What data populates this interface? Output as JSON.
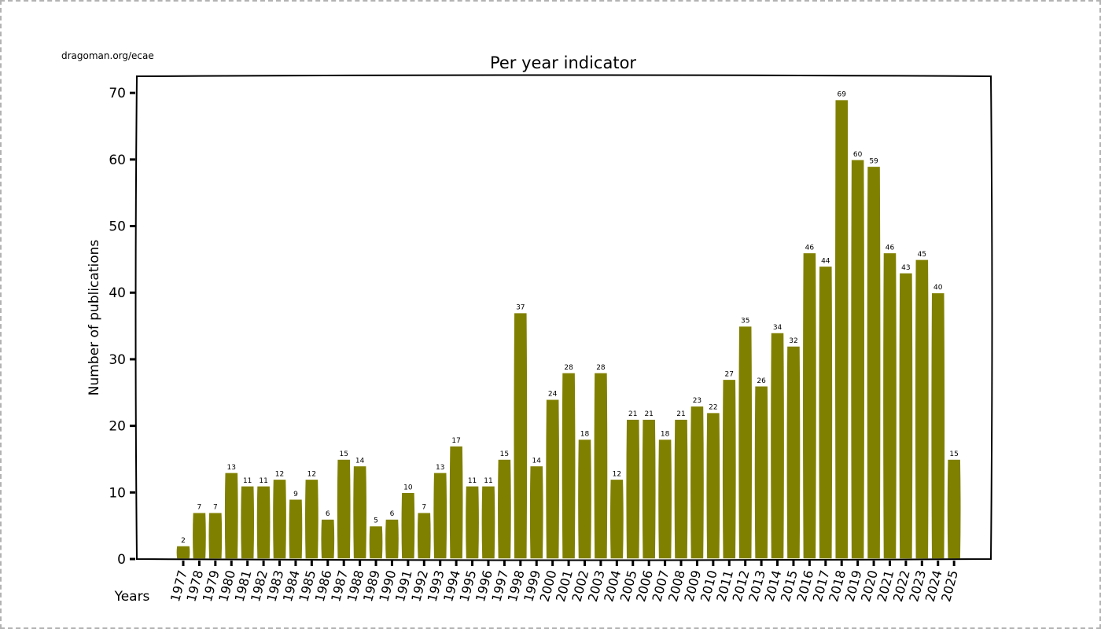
{
  "source_note": "dragoman.org/ecae",
  "colors": {
    "bar": "#808000",
    "bar_edge": "#ffffff",
    "axis": "#000000"
  },
  "chart_data": {
    "type": "bar",
    "title": "Per year indicator",
    "xlabel": "Years",
    "ylabel": "Number of publications",
    "ylim": [
      0,
      72.5
    ],
    "yticks": [
      0,
      10,
      20,
      30,
      40,
      50,
      60,
      70
    ],
    "grid": false,
    "categories": [
      "1977",
      "1978",
      "1979",
      "1980",
      "1981",
      "1982",
      "1983",
      "1984",
      "1985",
      "1986",
      "1987",
      "1988",
      "1989",
      "1990",
      "1991",
      "1992",
      "1993",
      "1994",
      "1995",
      "1996",
      "1997",
      "1998",
      "1999",
      "2000",
      "2001",
      "2002",
      "2003",
      "2004",
      "2005",
      "2006",
      "2007",
      "2008",
      "2009",
      "2010",
      "2011",
      "2012",
      "2013",
      "2014",
      "2015",
      "2016",
      "2017",
      "2018",
      "2019",
      "2020",
      "2021",
      "2022",
      "2023",
      "2024",
      "2025"
    ],
    "values": [
      2,
      7,
      7,
      13,
      11,
      11,
      12,
      9,
      12,
      6,
      15,
      14,
      5,
      6,
      10,
      7,
      13,
      17,
      11,
      11,
      15,
      37,
      14,
      24,
      28,
      18,
      28,
      12,
      21,
      21,
      18,
      21,
      23,
      22,
      27,
      35,
      26,
      34,
      32,
      46,
      44,
      69,
      60,
      59,
      46,
      43,
      45,
      40,
      15
    ]
  }
}
